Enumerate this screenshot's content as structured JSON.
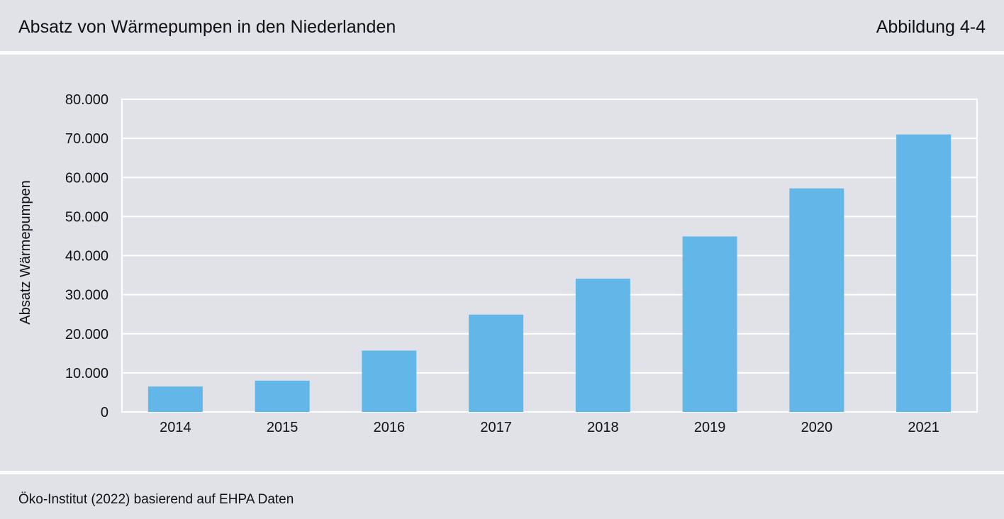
{
  "header": {
    "title": "Absatz von Wärmepumpen in den Niederlanden",
    "figure_label": "Abbildung 4-4"
  },
  "footer": {
    "source": "Öko-Institut (2022) basierend auf EHPA Daten"
  },
  "colors": {
    "background": "#e1e2e8",
    "bar": "#63b7e8",
    "grid": "#ffffff"
  },
  "chart_data": {
    "type": "bar",
    "title": "Absatz von Wärmepumpen in den Niederlanden",
    "xlabel": "",
    "ylabel": "Absatz Wärmepumpen",
    "categories": [
      "2014",
      "2015",
      "2016",
      "2017",
      "2018",
      "2019",
      "2020",
      "2021"
    ],
    "values": [
      6500,
      8000,
      15700,
      24900,
      34100,
      44900,
      57200,
      71000
    ],
    "ylim": [
      0,
      80000
    ],
    "yticks": [
      0,
      10000,
      20000,
      30000,
      40000,
      50000,
      60000,
      70000,
      80000
    ],
    "ytick_labels": [
      "0",
      "10.000",
      "20.000",
      "30.000",
      "40.000",
      "50.000",
      "60.000",
      "70.000",
      "80.000"
    ],
    "grid": true,
    "legend": "none"
  }
}
